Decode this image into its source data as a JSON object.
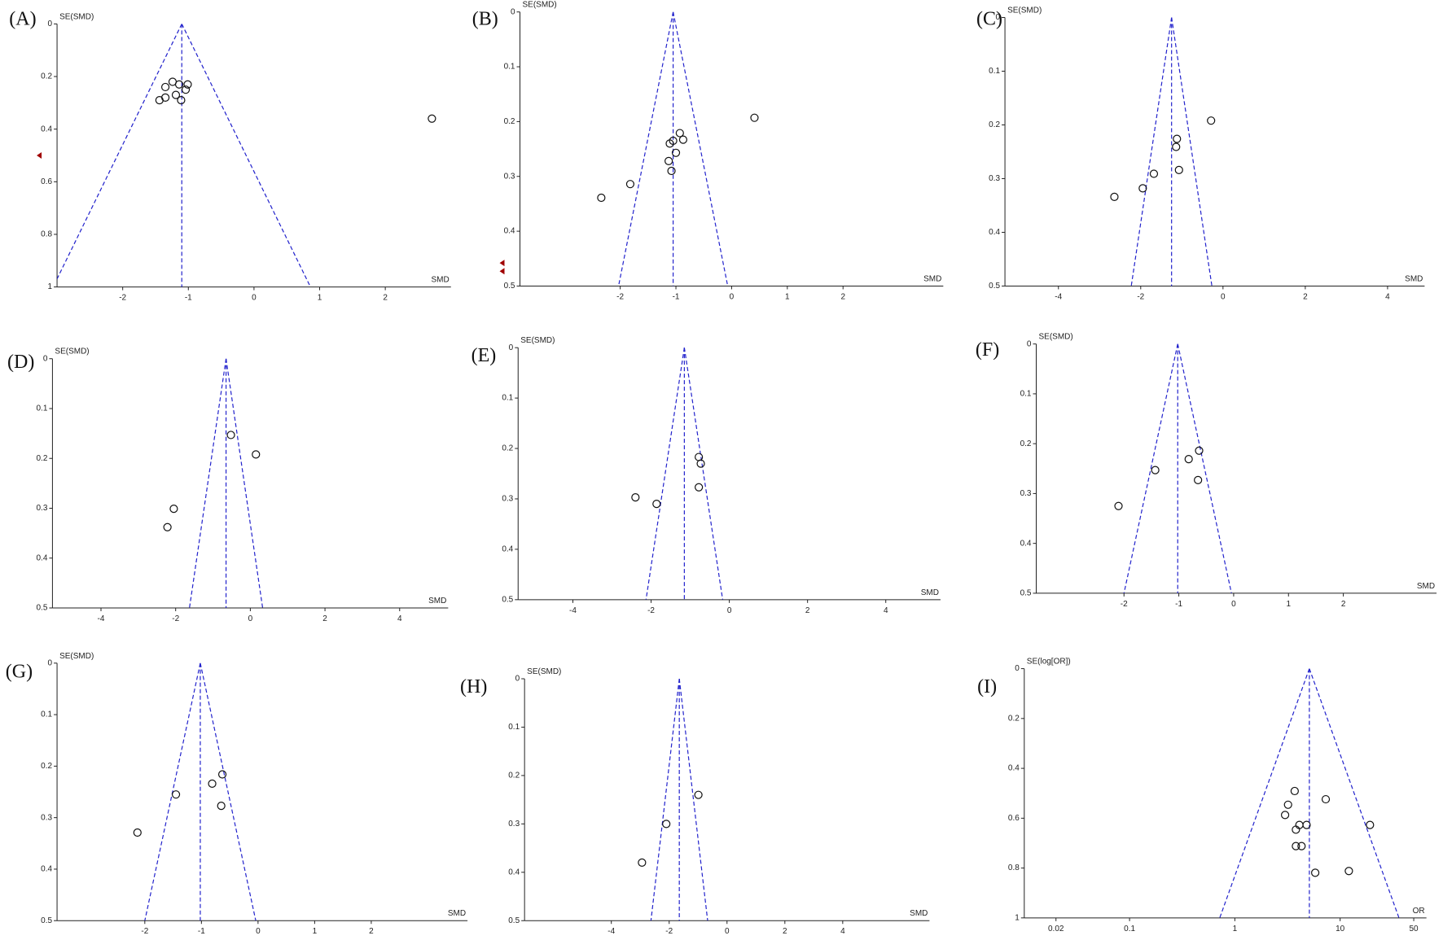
{
  "chart_data": [
    {
      "type": "funnel",
      "panel": "(A)",
      "ylabel": "SE(SMD)",
      "xlabel": "SMD",
      "xlim": [
        -3,
        3
      ],
      "ylim": [
        0,
        1
      ],
      "xticks": [
        -2,
        -1,
        0,
        1,
        2
      ],
      "yticks": [
        0,
        0.2,
        0.4,
        0.6,
        0.8,
        1
      ],
      "pooled": -1.1,
      "line_color": "#2222cc",
      "marker_color": "#111111",
      "trimmed_color": "#a00000",
      "x": [
        -1.24,
        -1.01,
        -1.35,
        -1.14,
        -1.04,
        -1.19,
        -1.35,
        -1.11,
        -1.44,
        2.71
      ],
      "y": [
        0.22,
        0.23,
        0.24,
        0.23,
        0.25,
        0.27,
        0.28,
        0.29,
        0.29,
        0.36
      ],
      "trimmed_y": [
        0.5
      ]
    },
    {
      "type": "funnel",
      "panel": "(B)",
      "ylabel": "SE(SMD)",
      "xlabel": "SMD",
      "xlim": [
        -3.8,
        3.8
      ],
      "ylim": [
        0,
        0.5
      ],
      "xticks": [
        -2,
        -1,
        0,
        1,
        2
      ],
      "yticks": [
        0,
        0.1,
        0.2,
        0.3,
        0.4,
        0.5
      ],
      "pooled": -1.05,
      "line_color": "#2222cc",
      "marker_color": "#111111",
      "trimmed_color": "#a00000",
      "x": [
        0.41,
        -0.93,
        -0.87,
        -1.05,
        -1.11,
        -1.0,
        -1.13,
        -1.08,
        -1.82,
        -2.34
      ],
      "y": [
        0.193,
        0.221,
        0.233,
        0.235,
        0.24,
        0.257,
        0.272,
        0.29,
        0.314,
        0.339
      ],
      "trimmed_y": [
        0.458,
        0.473
      ]
    },
    {
      "type": "funnel",
      "panel": "(C)",
      "ylabel": "SE(SMD)",
      "xlabel": "SMD",
      "xlim": [
        -5.3,
        4.9
      ],
      "ylim": [
        0,
        0.5
      ],
      "xticks": [
        -4,
        -2,
        0,
        2,
        4
      ],
      "yticks": [
        0,
        0.1,
        0.2,
        0.3,
        0.4,
        0.5
      ],
      "pooled": -1.25,
      "line_color": "#2222cc",
      "marker_color": "#111111",
      "x": [
        -0.29,
        -1.12,
        -1.14,
        -1.07,
        -1.68,
        -1.95,
        -2.64
      ],
      "y": [
        0.192,
        0.226,
        0.241,
        0.284,
        0.291,
        0.318,
        0.334
      ]
    },
    {
      "type": "funnel",
      "panel": "(D)",
      "ylabel": "SE(SMD)",
      "xlabel": "SMD",
      "xlim": [
        -5.3,
        5.3
      ],
      "ylim": [
        0,
        0.5
      ],
      "xticks": [
        -4,
        -2,
        0,
        2,
        4
      ],
      "yticks": [
        0,
        0.1,
        0.2,
        0.3,
        0.4,
        0.5
      ],
      "pooled": -0.65,
      "line_color": "#2222cc",
      "marker_color": "#111111",
      "x": [
        -0.52,
        0.15,
        -2.05,
        -2.22
      ],
      "y": [
        0.153,
        0.192,
        0.301,
        0.338
      ]
    },
    {
      "type": "funnel",
      "panel": "(E)",
      "ylabel": "SE(SMD)",
      "xlabel": "SMD",
      "xlim": [
        -5.4,
        5.4
      ],
      "ylim": [
        0,
        0.5
      ],
      "xticks": [
        -4,
        -2,
        0,
        2,
        4
      ],
      "yticks": [
        0,
        0.1,
        0.2,
        0.3,
        0.4,
        0.5
      ],
      "pooled": -1.15,
      "line_color": "#2222cc",
      "marker_color": "#111111",
      "x": [
        -0.78,
        -0.73,
        -0.78,
        -2.4,
        -1.86
      ],
      "y": [
        0.217,
        0.23,
        0.277,
        0.297,
        0.31
      ]
    },
    {
      "type": "funnel",
      "panel": "(F)",
      "ylabel": "SE(SMD)",
      "xlabel": "SMD",
      "xlim": [
        -3.6,
        3.7
      ],
      "ylim": [
        0,
        0.5
      ],
      "xticks": [
        -2,
        -1,
        0,
        1,
        2
      ],
      "yticks": [
        0,
        0.1,
        0.2,
        0.3,
        0.4,
        0.5
      ],
      "pooled": -1.02,
      "line_color": "#2222cc",
      "marker_color": "#111111",
      "x": [
        -0.63,
        -0.82,
        -1.43,
        -0.65,
        -2.1
      ],
      "y": [
        0.214,
        0.231,
        0.253,
        0.273,
        0.325
      ]
    },
    {
      "type": "funnel",
      "panel": "(G)",
      "ylabel": "SE(SMD)",
      "xlabel": "SMD",
      "xlim": [
        -3.55,
        3.7
      ],
      "ylim": [
        0,
        0.5
      ],
      "xticks": [
        -2,
        -1,
        0,
        1,
        2
      ],
      "yticks": [
        0,
        0.1,
        0.2,
        0.3,
        0.4,
        0.5
      ],
      "pooled": -1.02,
      "line_color": "#2222cc",
      "marker_color": "#111111",
      "x": [
        -0.63,
        -0.81,
        -1.45,
        -0.65,
        -2.13
      ],
      "y": [
        0.216,
        0.234,
        0.255,
        0.277,
        0.329
      ]
    },
    {
      "type": "funnel",
      "panel": "(H)",
      "ylabel": "SE(SMD)",
      "xlabel": "SMD",
      "xlim": [
        -7,
        7
      ],
      "ylim": [
        0,
        0.5
      ],
      "xticks": [
        -4,
        -2,
        0,
        2,
        4
      ],
      "yticks": [
        0,
        0.1,
        0.2,
        0.3,
        0.4,
        0.5
      ],
      "pooled": -1.65,
      "line_color": "#2222cc",
      "marker_color": "#111111",
      "x": [
        -0.99,
        -2.1,
        -2.94
      ],
      "y": [
        0.24,
        0.3,
        0.38
      ]
    },
    {
      "type": "funnel",
      "panel": "(I)",
      "ylabel": "SE(log[OR])",
      "xlabel": "OR",
      "xscale": "log",
      "xlim": [
        0.01,
        66
      ],
      "ylim": [
        0,
        1
      ],
      "xticks": [
        0.02,
        0.1,
        1,
        10,
        50
      ],
      "yticks": [
        0,
        0.2,
        0.4,
        0.6,
        0.8,
        1
      ],
      "pooled": 5.1,
      "line_color": "#2222cc",
      "marker_color": "#111111",
      "x": [
        3.7,
        3.2,
        7.3,
        3.0,
        4.1,
        4.8,
        3.8,
        19.2,
        3.8,
        4.3,
        5.8,
        12.1
      ],
      "y": [
        0.491,
        0.546,
        0.524,
        0.587,
        0.627,
        0.627,
        0.646,
        0.627,
        0.712,
        0.712,
        0.819,
        0.812
      ]
    }
  ]
}
